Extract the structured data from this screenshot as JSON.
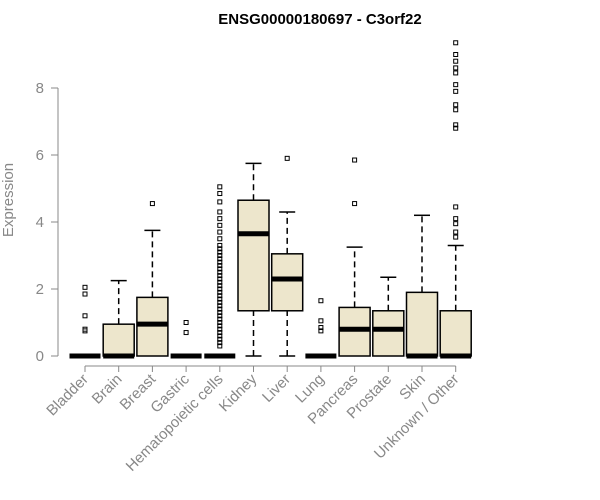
{
  "chart_data": {
    "type": "boxplot",
    "title": "ENSG00000180697 - C3orf22",
    "ylabel": "Expression",
    "xlabel": "",
    "ylim": [
      0,
      9.4
    ],
    "yticks": [
      0,
      2,
      4,
      6,
      8
    ],
    "box_fill": "#EDE6CC",
    "categories": [
      "Bladder",
      "Brain",
      "Breast",
      "Gastric",
      "Hematopoietic cells",
      "Kidney",
      "Liver",
      "Lung",
      "Pancreas",
      "Prostate",
      "Skin",
      "Unknown / Other"
    ],
    "boxes": [
      {
        "q1": 0,
        "median": 0,
        "q3": 0,
        "whisker_low": 0,
        "whisker_high": 0,
        "outliers": [
          0.75,
          0.8,
          1.2,
          1.85,
          2.05
        ]
      },
      {
        "q1": 0,
        "median": 0,
        "q3": 0.95,
        "whisker_low": 0,
        "whisker_high": 2.25,
        "outliers": []
      },
      {
        "q1": 0,
        "median": 0.95,
        "q3": 1.75,
        "whisker_low": 0,
        "whisker_high": 3.75,
        "outliers": [
          4.55
        ]
      },
      {
        "q1": 0,
        "median": 0,
        "q3": 0,
        "whisker_low": 0,
        "whisker_high": 0,
        "outliers": [
          0.7,
          1.0
        ]
      },
      {
        "q1": 0,
        "median": 0,
        "q3": 0,
        "whisker_low": 0,
        "whisker_high": 0,
        "outliers": [
          0.3,
          0.4,
          0.5,
          0.6,
          0.7,
          0.8,
          0.9,
          1.0,
          1.1,
          1.2,
          1.3,
          1.4,
          1.5,
          1.6,
          1.7,
          1.8,
          1.9,
          2.0,
          2.1,
          2.2,
          2.3,
          2.4,
          2.5,
          2.6,
          2.7,
          2.8,
          2.9,
          3.0,
          3.1,
          3.2,
          3.3,
          3.5,
          3.7,
          3.9,
          4.1,
          4.3,
          4.6,
          4.85,
          5.05
        ]
      },
      {
        "q1": 1.35,
        "median": 3.65,
        "q3": 4.65,
        "whisker_low": 0,
        "whisker_high": 5.75,
        "outliers": []
      },
      {
        "q1": 1.35,
        "median": 2.3,
        "q3": 3.05,
        "whisker_low": 0,
        "whisker_high": 4.3,
        "outliers": [
          5.9
        ]
      },
      {
        "q1": 0,
        "median": 0,
        "q3": 0,
        "whisker_low": 0,
        "whisker_high": 0,
        "outliers": [
          0.75,
          0.85,
          1.05,
          1.65
        ]
      },
      {
        "q1": 0,
        "median": 0.8,
        "q3": 1.45,
        "whisker_low": 0,
        "whisker_high": 3.25,
        "outliers": [
          4.55,
          5.85
        ]
      },
      {
        "q1": 0,
        "median": 0.8,
        "q3": 1.35,
        "whisker_low": 0,
        "whisker_high": 2.35,
        "outliers": []
      },
      {
        "q1": 0,
        "median": 0,
        "q3": 1.9,
        "whisker_low": 0,
        "whisker_high": 4.2,
        "outliers": []
      },
      {
        "q1": 0,
        "median": 0,
        "q3": 1.35,
        "whisker_low": 0,
        "whisker_high": 3.3,
        "outliers": [
          3.55,
          3.7,
          3.95,
          4.1,
          4.45,
          6.8,
          6.9,
          7.35,
          7.5,
          7.9,
          8.1,
          8.45,
          8.6,
          8.8,
          9.0,
          9.35
        ]
      }
    ]
  }
}
